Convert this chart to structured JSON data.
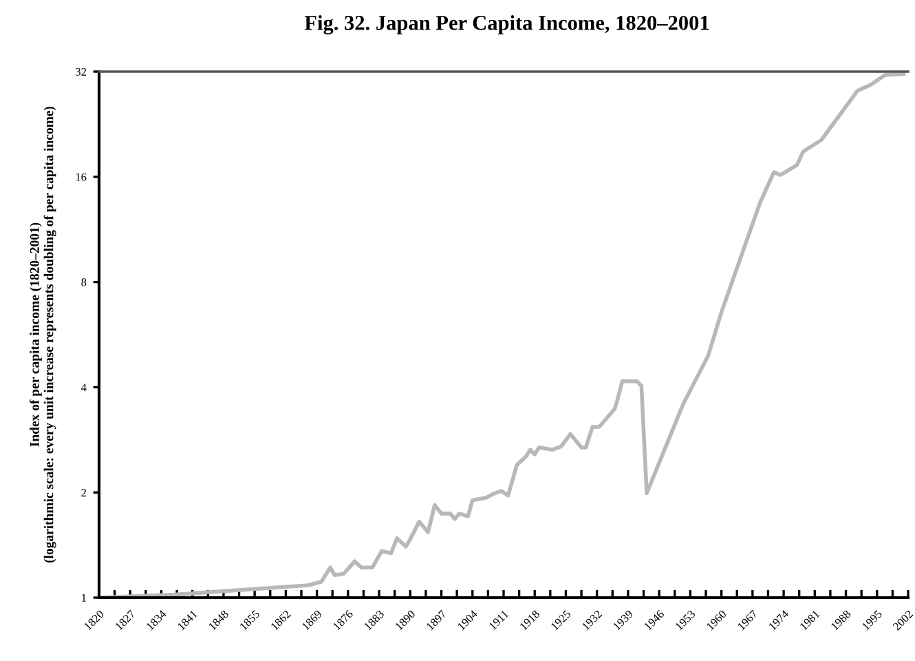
{
  "chart_data": {
    "type": "line",
    "title": "Fig. 32. Japan Per Capita Income, 1820–2001",
    "ylabel": "Index of per capita income (1820–2001)\n(logarithmic scale: every unit increase represents doubling of per capita income)",
    "log": "y",
    "grid": false,
    "marker": "none",
    "line_style": "solid",
    "xlim": [
      1820,
      2002
    ],
    "ylim": [
      1,
      32
    ],
    "yticks": [
      1,
      2,
      4,
      8,
      16,
      32
    ],
    "xticks": [
      1820,
      {
        "value": 1823.5,
        "label": null
      },
      1827,
      {
        "value": 1830.5,
        "label": null
      },
      1834,
      {
        "value": 1837.5,
        "label": null
      },
      1841,
      {
        "value": 1844.5,
        "label": null
      },
      1848,
      {
        "value": 1851.5,
        "label": null
      },
      1855,
      {
        "value": 1858.5,
        "label": null
      },
      1862,
      {
        "value": 1865.5,
        "label": null
      },
      1869,
      {
        "value": 1872.5,
        "label": null
      },
      1876,
      {
        "value": 1879.5,
        "label": null
      },
      1883,
      {
        "value": 1886.5,
        "label": null
      },
      1890,
      {
        "value": 1893.5,
        "label": null
      },
      1897,
      {
        "value": 1900.5,
        "label": null
      },
      1904,
      {
        "value": 1907.5,
        "label": null
      },
      1911,
      {
        "value": 1914.5,
        "label": null
      },
      1918,
      {
        "value": 1921.5,
        "label": null
      },
      1925,
      {
        "value": 1928.5,
        "label": null
      },
      1932,
      {
        "value": 1935.5,
        "label": null
      },
      1939,
      {
        "value": 1942.5,
        "label": null
      },
      1946,
      {
        "value": 1949.5,
        "label": null
      },
      1953,
      {
        "value": 1956.5,
        "label": null
      },
      1960,
      {
        "value": 1963.5,
        "label": null
      },
      1967,
      {
        "value": 1970.5,
        "label": null
      },
      1974,
      {
        "value": 1977.5,
        "label": null
      },
      1981,
      {
        "value": 1984.5,
        "label": null
      },
      1988,
      {
        "value": 1991.5,
        "label": null
      },
      1995,
      {
        "value": 1998.5,
        "label": null
      },
      2002
    ],
    "series": [
      {
        "color": "#b8b8b8",
        "x": [
          1820,
          1837,
          1867,
          1870,
          1872,
          1873,
          1875,
          1877.5,
          1879,
          1881.5,
          1883.6,
          1885.7,
          1887,
          1889,
          1890,
          1892,
          1894,
          1895.5,
          1897,
          1899,
          1900,
          1901,
          1903,
          1904,
          1907,
          1909,
          1910.5,
          1912,
          1914,
          1916,
          1917,
          1918,
          1919,
          1922,
          1924,
          1926,
          1928.5,
          1929.5,
          1931,
          1932.5,
          1936,
          1936.5,
          1937.7,
          1941,
          1942,
          1943.2,
          1951.4,
          1957,
          1960,
          1968.7,
          1971.8,
          1973.3,
          1977,
          1978.4,
          1982.5,
          1990.6,
          1993.7,
          1996.8,
          2001
        ],
        "values": [
          1.0,
          1.02,
          1.085,
          1.11,
          1.22,
          1.16,
          1.17,
          1.27,
          1.22,
          1.22,
          1.36,
          1.34,
          1.48,
          1.4,
          1.47,
          1.65,
          1.54,
          1.84,
          1.74,
          1.74,
          1.68,
          1.74,
          1.71,
          1.9,
          1.93,
          1.99,
          2.02,
          1.96,
          2.4,
          2.53,
          2.65,
          2.57,
          2.69,
          2.65,
          2.71,
          2.94,
          2.69,
          2.69,
          3.08,
          3.08,
          3.47,
          3.64,
          4.16,
          4.16,
          4.04,
          1.99,
          3.58,
          4.92,
          6.56,
          13.5,
          16.5,
          16.2,
          17.3,
          18.9,
          20.4,
          28.2,
          29.4,
          31.3,
          31.5
        ]
      }
    ]
  }
}
